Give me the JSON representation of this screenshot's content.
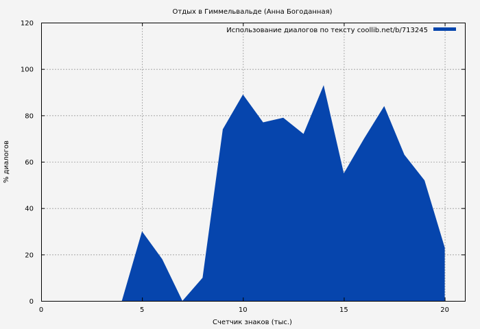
{
  "chart_data": {
    "type": "area",
    "title": "Отдых в Гиммельвальде (Анна Богоданная)",
    "xlabel": "Счетчик знаков (тыс.)",
    "ylabel": "% диалогов",
    "xlim": [
      0,
      21
    ],
    "ylim": [
      0,
      120
    ],
    "xticks": [
      0,
      5,
      10,
      15,
      20
    ],
    "yticks": [
      0,
      20,
      40,
      60,
      80,
      100,
      120
    ],
    "grid": true,
    "legend_position": "top-right",
    "series": [
      {
        "name": "Использование диалогов по тексту coollib.net/b/713245",
        "color": "#0645ad",
        "x": [
          0,
          1,
          2,
          3,
          4,
          5,
          6,
          7,
          8,
          9,
          10,
          11,
          12,
          13,
          14,
          15,
          16,
          17,
          18,
          19,
          20
        ],
        "values": [
          0,
          0,
          0,
          0,
          0,
          30,
          18,
          0,
          10,
          74,
          89,
          77,
          79,
          72,
          93,
          55,
          70,
          84,
          63,
          52,
          23
        ]
      }
    ]
  }
}
